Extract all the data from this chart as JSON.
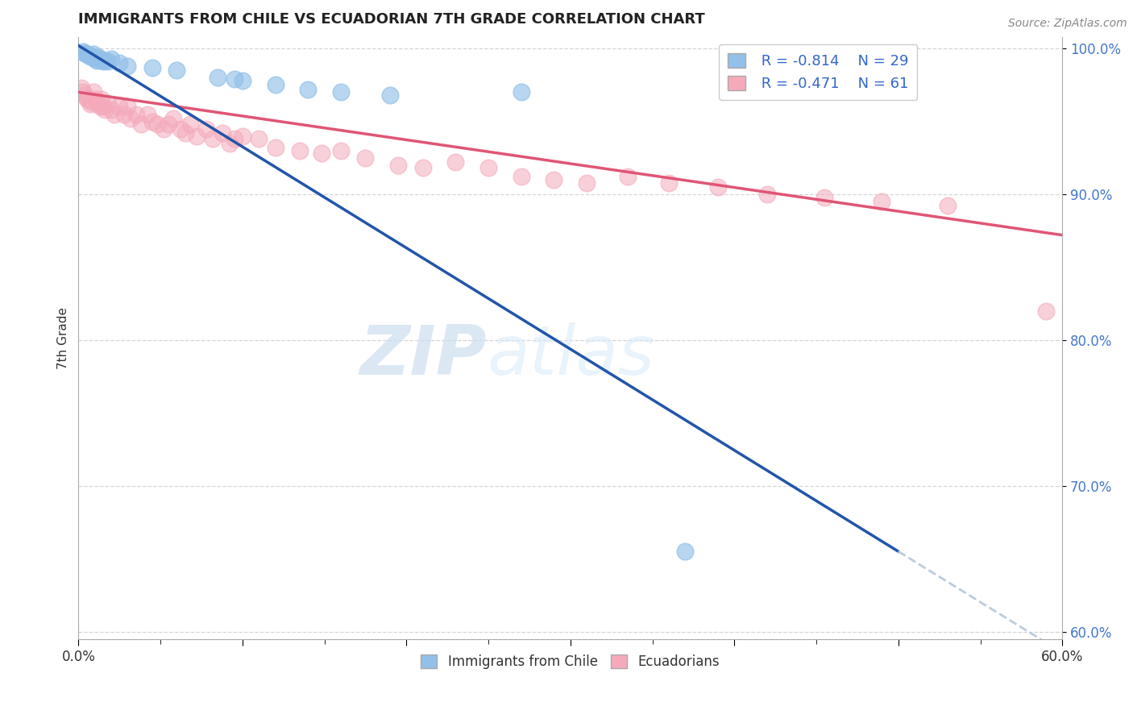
{
  "title": "IMMIGRANTS FROM CHILE VS ECUADORIAN 7TH GRADE CORRELATION CHART",
  "source_text": "Source: ZipAtlas.com",
  "ylabel": "7th Grade",
  "xlim": [
    0.0,
    0.6
  ],
  "ylim": [
    0.595,
    1.008
  ],
  "yticks": [
    0.6,
    0.7,
    0.8,
    0.9,
    1.0
  ],
  "ytick_labels": [
    "60.0%",
    "70.0%",
    "80.0%",
    "90.0%",
    "100.0%"
  ],
  "xticks": [
    0.0,
    0.1,
    0.2,
    0.3,
    0.4,
    0.5,
    0.6
  ],
  "xtick_labels": [
    "0.0%",
    "",
    "",
    "",
    "",
    "",
    "60.0%"
  ],
  "legend_r1": "R = -0.814",
  "legend_n1": "N = 29",
  "legend_r2": "R = -0.471",
  "legend_n2": "N = 61",
  "blue_color": "#92C0E8",
  "pink_color": "#F4AABB",
  "blue_line_color": "#2255AA",
  "pink_line_color": "#E05575",
  "dash_color": "#BBCCDD",
  "watermark_zip": "ZIP",
  "watermark_atlas": "atlas",
  "blue_points_x": [
    0.003,
    0.004,
    0.005,
    0.006,
    0.007,
    0.008,
    0.009,
    0.01,
    0.011,
    0.012,
    0.013,
    0.014,
    0.015,
    0.016,
    0.018,
    0.02,
    0.025,
    0.03,
    0.045,
    0.27,
    0.085,
    0.1,
    0.06,
    0.095,
    0.12,
    0.14,
    0.16,
    0.19,
    0.37
  ],
  "blue_points_y": [
    0.998,
    0.997,
    0.996,
    0.995,
    0.995,
    0.994,
    0.996,
    0.993,
    0.992,
    0.994,
    0.993,
    0.992,
    0.991,
    0.992,
    0.991,
    0.993,
    0.99,
    0.988,
    0.987,
    0.97,
    0.98,
    0.978,
    0.985,
    0.979,
    0.975,
    0.972,
    0.97,
    0.968,
    0.655
  ],
  "pink_points_x": [
    0.002,
    0.003,
    0.004,
    0.005,
    0.006,
    0.007,
    0.008,
    0.009,
    0.01,
    0.011,
    0.012,
    0.013,
    0.014,
    0.015,
    0.016,
    0.018,
    0.02,
    0.022,
    0.025,
    0.028,
    0.03,
    0.032,
    0.035,
    0.038,
    0.042,
    0.045,
    0.048,
    0.052,
    0.055,
    0.058,
    0.062,
    0.065,
    0.068,
    0.072,
    0.078,
    0.082,
    0.088,
    0.092,
    0.095,
    0.1,
    0.11,
    0.12,
    0.135,
    0.148,
    0.16,
    0.175,
    0.195,
    0.21,
    0.23,
    0.25,
    0.27,
    0.29,
    0.31,
    0.335,
    0.36,
    0.39,
    0.42,
    0.455,
    0.49,
    0.53,
    0.59
  ],
  "pink_points_y": [
    0.973,
    0.97,
    0.968,
    0.965,
    0.965,
    0.962,
    0.963,
    0.97,
    0.965,
    0.963,
    0.962,
    0.96,
    0.965,
    0.96,
    0.958,
    0.962,
    0.958,
    0.955,
    0.96,
    0.955,
    0.96,
    0.952,
    0.955,
    0.948,
    0.955,
    0.95,
    0.948,
    0.945,
    0.948,
    0.952,
    0.945,
    0.942,
    0.948,
    0.94,
    0.945,
    0.938,
    0.942,
    0.935,
    0.938,
    0.94,
    0.938,
    0.932,
    0.93,
    0.928,
    0.93,
    0.925,
    0.92,
    0.918,
    0.922,
    0.918,
    0.912,
    0.91,
    0.908,
    0.912,
    0.908,
    0.905,
    0.9,
    0.898,
    0.895,
    0.892,
    0.82
  ],
  "blue_line_x0": 0.0,
  "blue_line_y0": 1.002,
  "blue_line_x1": 0.5,
  "blue_line_y1": 0.655,
  "blue_line_xdash0": 0.5,
  "blue_line_xdash1": 0.6,
  "pink_line_x0": 0.0,
  "pink_line_y0": 0.97,
  "pink_line_x1": 0.6,
  "pink_line_y1": 0.872
}
